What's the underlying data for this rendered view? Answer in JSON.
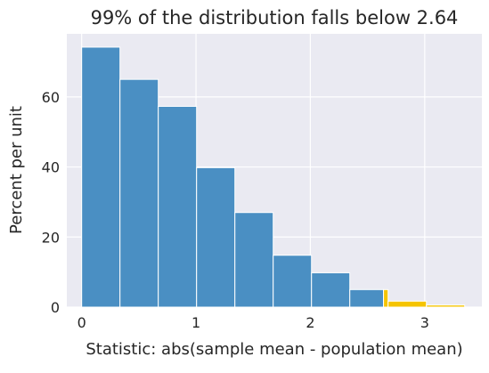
{
  "chart_data": {
    "type": "bar",
    "title": "99% of the distribution falls below 2.64",
    "xlabel": "Statistic: abs(sample mean - population mean)",
    "ylabel": "Percent per unit",
    "xlim": [
      -0.13,
      3.5
    ],
    "ylim": [
      0,
      78
    ],
    "xticks": [
      0,
      1,
      2,
      3
    ],
    "yticks": [
      0,
      20,
      40,
      60
    ],
    "grid": true,
    "bins": [
      {
        "left": 0.0,
        "right": 0.335,
        "value": 74.2
      },
      {
        "left": 0.335,
        "right": 0.67,
        "value": 65.0
      },
      {
        "left": 0.67,
        "right": 1.005,
        "value": 57.3
      },
      {
        "left": 1.005,
        "right": 1.34,
        "value": 39.8
      },
      {
        "left": 1.34,
        "right": 1.675,
        "value": 27.0
      },
      {
        "left": 1.675,
        "right": 2.01,
        "value": 14.8
      },
      {
        "left": 2.01,
        "right": 2.345,
        "value": 9.8
      },
      {
        "left": 2.345,
        "right": 2.64,
        "value": 5.0
      }
    ],
    "shaded_bins": [
      {
        "left": 2.64,
        "right": 2.68,
        "value": 5.0
      },
      {
        "left": 2.68,
        "right": 3.015,
        "value": 1.7
      },
      {
        "left": 3.015,
        "right": 3.35,
        "value": 0.6
      }
    ],
    "colors": {
      "bar": "#4a8fc3",
      "shaded": "#f5c400",
      "plot_bg": "#eaeaf2",
      "grid": "#ffffff",
      "text": "#262626"
    }
  }
}
